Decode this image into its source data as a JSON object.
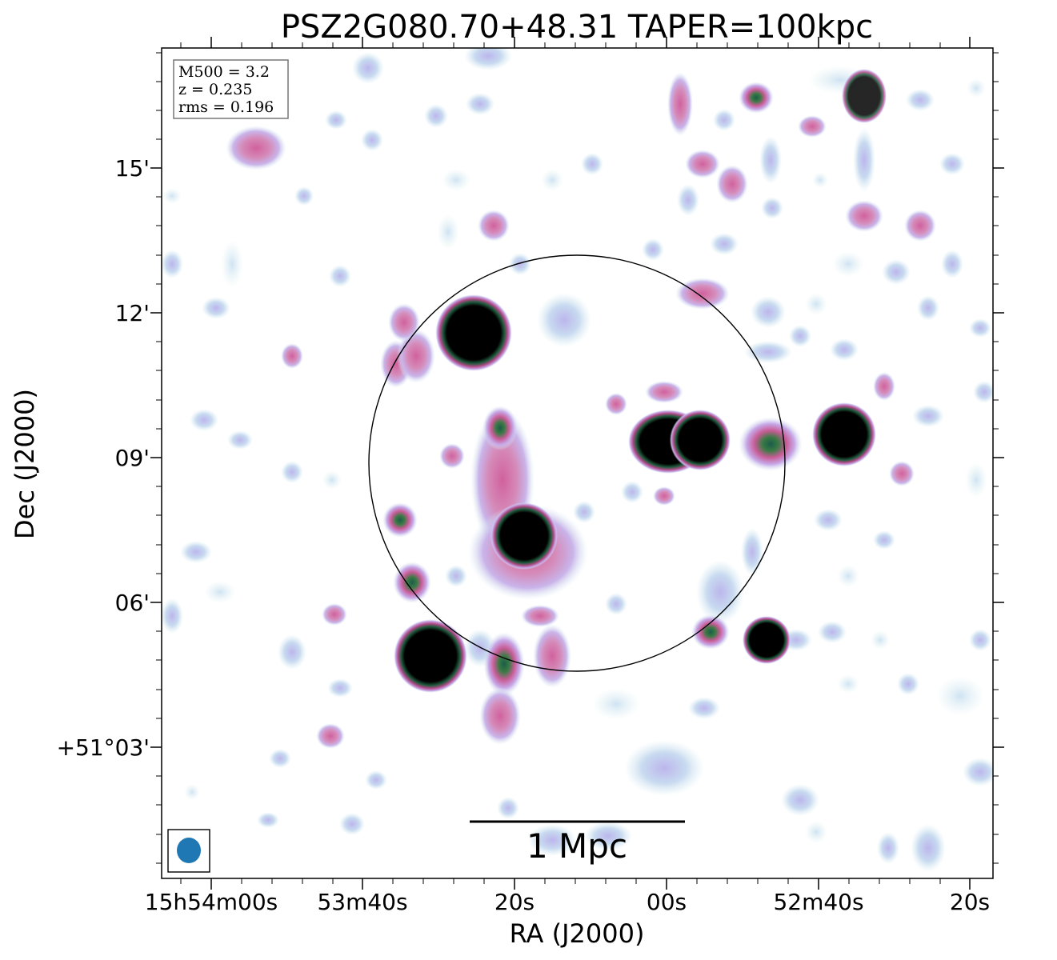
{
  "title": "PSZ2G080.70+48.31 TAPER=100kpc",
  "info_box": {
    "line1": "M500 = 3.2",
    "line2": "z = 0.235",
    "line3": "rms = 0.196"
  },
  "axes": {
    "xlabel": "RA (J2000)",
    "ylabel": "Dec (J2000)",
    "x_ticks": [
      "15h54m00s",
      "53m40s",
      "20s",
      "00s",
      "52m40s",
      "20s"
    ],
    "y_ticks": [
      "15'",
      "12'",
      "09'",
      "06'",
      "+51°03'"
    ]
  },
  "scale_bar": {
    "label": "1 Mpc"
  },
  "colors": {
    "beam": "#1f77b4",
    "emission_low": "#d8ecf2",
    "emission_mid": "#c7a9e8",
    "emission_high": "#d1619e",
    "emission_peak": "#000000"
  }
}
